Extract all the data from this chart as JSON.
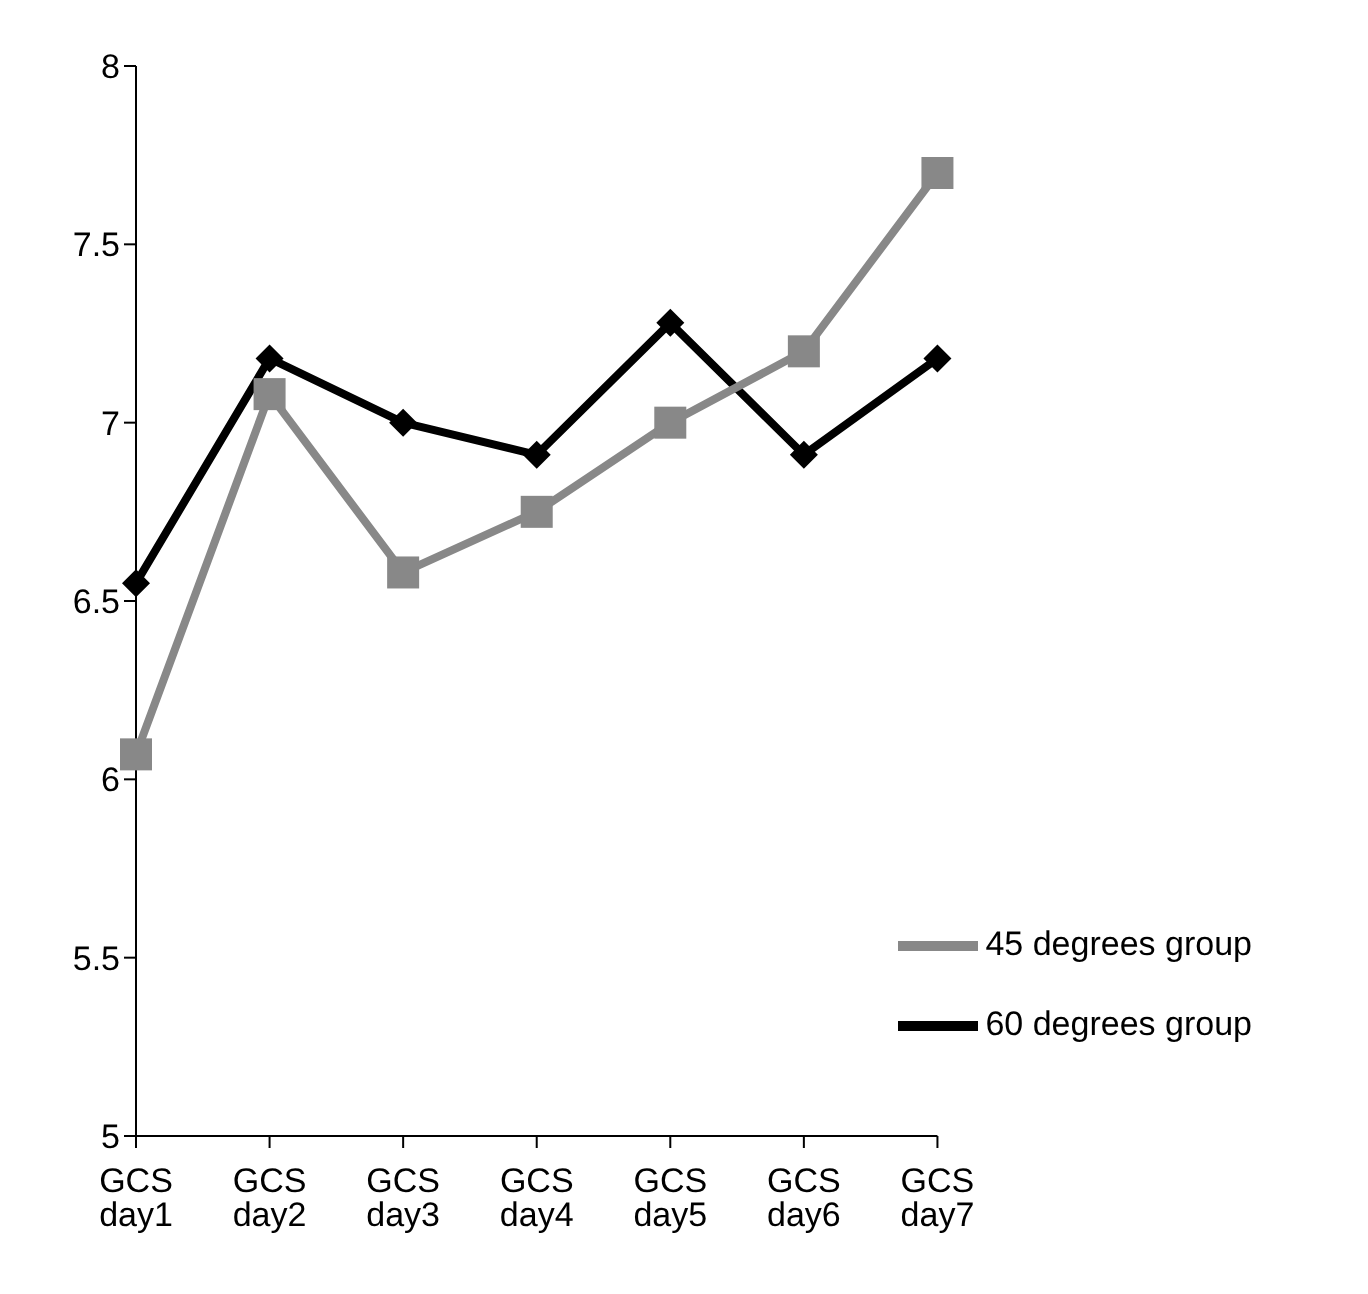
{
  "chart_data": {
    "type": "line",
    "categories": [
      "GCS day1",
      "GCS day2",
      "GCS day3",
      "GCS day4",
      "GCS day5",
      "GCS day6",
      "GCS day7"
    ],
    "series": [
      {
        "name": "60 degrees group",
        "color": "#000000",
        "marker": "diamond",
        "values": [
          6.55,
          7.18,
          7.0,
          6.91,
          7.28,
          6.91,
          7.18
        ]
      },
      {
        "name": "45 degrees group",
        "color": "#888888",
        "marker": "square",
        "values": [
          6.07,
          7.08,
          6.58,
          6.75,
          7.0,
          7.2,
          7.7
        ]
      }
    ],
    "ylim": [
      5,
      8
    ],
    "yticks": [
      5,
      5.5,
      6,
      6.5,
      7,
      7.5,
      8
    ],
    "grid": false,
    "legend": "bottom right"
  }
}
